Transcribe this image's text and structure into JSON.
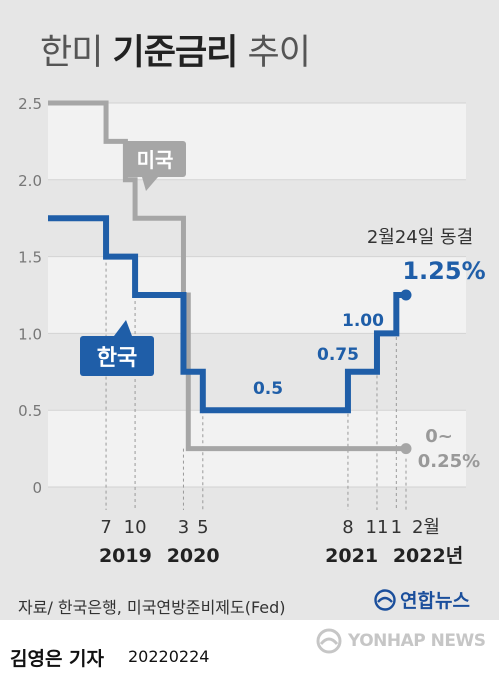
{
  "title": {
    "light_prefix": "한미",
    "bold": "기준금리",
    "light_suffix": "추이"
  },
  "chart_data": {
    "type": "line",
    "interpolation": "step",
    "ylim": [
      0,
      2.5
    ],
    "yticks": [
      "0",
      "0.5",
      "1.0",
      "1.5",
      "2.0",
      "2.5"
    ],
    "x_month_labels": [
      "7",
      "10",
      "3",
      "5",
      "8",
      "11",
      "1",
      "2월"
    ],
    "x_year_labels": [
      "2019",
      "2020",
      "2021",
      "2022년"
    ],
    "grid": true,
    "series": [
      {
        "name": "미국",
        "color": "#a6a6a6",
        "x": [
          "2019-01",
          "2019-07",
          "2019-09",
          "2019-10",
          "2020-03",
          "2020-03-16",
          "2022-02"
        ],
        "y": [
          2.5,
          2.25,
          2.0,
          1.75,
          1.25,
          0.25,
          0.25
        ]
      },
      {
        "name": "한국",
        "color": "#1f5ea8",
        "x": [
          "2019-01",
          "2019-07",
          "2019-10",
          "2020-03",
          "2020-05",
          "2021-08",
          "2021-11",
          "2022-01",
          "2022-02"
        ],
        "y": [
          1.75,
          1.5,
          1.25,
          0.75,
          0.5,
          0.75,
          1.0,
          1.25,
          1.25
        ]
      }
    ],
    "data_labels": [
      "0.5",
      "0.75",
      "1.00",
      "1.25%",
      "0~",
      "0.25%"
    ],
    "annotation": "2월24일 동결"
  },
  "colors": {
    "us": "#a6a6a6",
    "korea": "#1f5ea8",
    "background": "#e6e6e6",
    "band": "#ffffff",
    "logo": "#1b4f9c"
  },
  "footer": {
    "source": "자료/ 한국은행, 미국연방준비제도(Fed)",
    "logo": "연합뉴스",
    "reporter": "김영은 기자",
    "date": "20220224",
    "watermark": "YONHAP NEWS"
  }
}
